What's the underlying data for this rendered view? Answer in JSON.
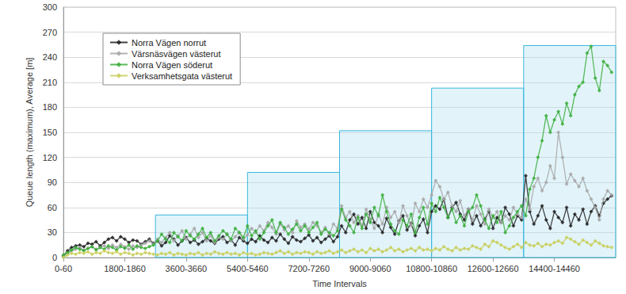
{
  "chart_data": {
    "type": "line",
    "x_label": "Time Intervals",
    "y_label": "Queue length (maximum), Average [m]",
    "xlim": [
      0,
      16200
    ],
    "xticks": [
      {
        "value": 0,
        "label": "0-60"
      },
      {
        "value": 1800,
        "label": "1800-1860"
      },
      {
        "value": 3600,
        "label": "3600-3660"
      },
      {
        "value": 5400,
        "label": "5400-5460"
      },
      {
        "value": 7200,
        "label": "7200-7260"
      },
      {
        "value": 9000,
        "label": "9000-9060"
      },
      {
        "value": 10800,
        "label": "10800-10860"
      },
      {
        "value": 12600,
        "label": "12600-12660"
      },
      {
        "value": 14400,
        "label": "14400-14460"
      }
    ],
    "ylim": [
      0,
      300
    ],
    "yticks": [
      0,
      30,
      60,
      90,
      120,
      150,
      180,
      210,
      240,
      270,
      300
    ],
    "grid": true,
    "legend": "upper left",
    "marker": "diamond",
    "line_style": "solid",
    "steps": [
      {
        "start": 2700,
        "end": 5400,
        "value": 51
      },
      {
        "start": 5400,
        "end": 8100,
        "value": 102
      },
      {
        "start": 8100,
        "end": 10800,
        "value": 152
      },
      {
        "start": 10800,
        "end": 13500,
        "value": 203
      },
      {
        "start": 13500,
        "end": 16200,
        "value": 254
      }
    ],
    "x": [
      0,
      120,
      240,
      360,
      480,
      600,
      720,
      840,
      960,
      1080,
      1200,
      1320,
      1440,
      1560,
      1680,
      1800,
      1920,
      2040,
      2160,
      2280,
      2400,
      2520,
      2640,
      2760,
      2880,
      3000,
      3120,
      3240,
      3360,
      3480,
      3600,
      3720,
      3840,
      3960,
      4080,
      4200,
      4320,
      4440,
      4560,
      4680,
      4800,
      4920,
      5040,
      5160,
      5280,
      5400,
      5520,
      5640,
      5760,
      5880,
      6000,
      6120,
      6240,
      6360,
      6480,
      6600,
      6720,
      6840,
      6960,
      7080,
      7200,
      7320,
      7440,
      7560,
      7680,
      7800,
      7920,
      8040,
      8160,
      8280,
      8400,
      8520,
      8640,
      8760,
      8880,
      9000,
      9120,
      9240,
      9360,
      9480,
      9600,
      9720,
      9840,
      9960,
      10080,
      10200,
      10320,
      10440,
      10560,
      10680,
      10800,
      10920,
      11040,
      11160,
      11280,
      11400,
      11520,
      11640,
      11760,
      11880,
      12000,
      12120,
      12240,
      12360,
      12480,
      12600,
      12720,
      12840,
      12960,
      13080,
      13200,
      13320,
      13440,
      13560,
      13680,
      13800,
      13920,
      14040,
      14160,
      14280,
      14400,
      14520,
      14640,
      14760,
      14880,
      15000,
      15120,
      15240,
      15360,
      15480,
      15600,
      15720,
      15840,
      15960,
      16080
    ],
    "series": [
      {
        "name": "Norra Vägen norrut",
        "color": "#222222",
        "values": [
          2,
          8,
          12,
          14,
          15,
          13,
          17,
          16,
          19,
          14,
          18,
          22,
          24,
          20,
          25,
          22,
          18,
          21,
          20,
          16,
          19,
          22,
          17,
          20,
          14,
          18,
          26,
          22,
          15,
          20,
          24,
          18,
          21,
          16,
          19,
          23,
          20,
          17,
          22,
          25,
          18,
          21,
          15,
          24,
          20,
          17,
          22,
          19,
          26,
          21,
          18,
          24,
          20,
          28,
          22,
          17,
          25,
          21,
          19,
          23,
          27,
          20,
          24,
          18,
          22,
          26,
          19,
          25,
          38,
          30,
          45,
          52,
          40,
          48,
          35,
          55,
          42,
          38,
          30,
          47,
          36,
          28,
          44,
          50,
          33,
          41,
          26,
          38,
          46,
          30,
          55,
          62,
          58,
          70,
          48,
          60,
          66,
          52,
          45,
          58,
          40,
          50,
          38,
          46,
          55,
          35,
          48,
          42,
          60,
          52,
          38,
          50,
          45,
          98,
          55,
          40,
          50,
          62,
          45,
          35,
          55,
          48,
          42,
          60,
          38,
          52,
          45,
          58,
          40,
          55,
          62,
          50,
          65,
          70,
          74
        ]
      },
      {
        "name": "Värsnäsvägen västerut",
        "color": "#a6a6a6",
        "values": [
          1,
          5,
          8,
          10,
          12,
          9,
          11,
          13,
          10,
          12,
          14,
          11,
          15,
          12,
          16,
          13,
          10,
          14,
          12,
          15,
          17,
          20,
          16,
          22,
          18,
          24,
          30,
          20,
          26,
          32,
          22,
          28,
          35,
          24,
          30,
          20,
          26,
          18,
          24,
          22,
          28,
          20,
          25,
          30,
          22,
          27,
          35,
          30,
          38,
          32,
          42,
          36,
          28,
          40,
          33,
          38,
          30,
          44,
          36,
          40,
          34,
          42,
          38,
          30,
          36,
          28,
          40,
          35,
          62,
          48,
          55,
          42,
          50,
          38,
          58,
          46,
          35,
          52,
          40,
          60,
          48,
          55,
          42,
          62,
          50,
          38,
          65,
          55,
          70,
          60,
          75,
          92,
          85,
          70,
          78,
          62,
          55,
          68,
          50,
          58,
          45,
          62,
          52,
          40,
          58,
          48,
          55,
          42,
          50,
          45,
          60,
          52,
          48,
          70,
          58,
          85,
          95,
          80,
          90,
          110,
          95,
          150,
          120,
          88,
          100,
          92,
          85,
          95,
          80,
          70,
          60,
          45,
          70,
          80,
          75
        ]
      },
      {
        "name": "Norra Vägen söderut",
        "color": "#3cae3c",
        "values": [
          3,
          6,
          9,
          12,
          10,
          8,
          11,
          13,
          9,
          12,
          10,
          14,
          12,
          9,
          13,
          11,
          15,
          10,
          14,
          12,
          11,
          13,
          15,
          20,
          28,
          22,
          18,
          30,
          25,
          20,
          32,
          26,
          22,
          28,
          35,
          24,
          30,
          20,
          26,
          32,
          28,
          22,
          35,
          30,
          24,
          38,
          26,
          32,
          22,
          30,
          38,
          45,
          30,
          42,
          36,
          28,
          34,
          40,
          32,
          38,
          30,
          36,
          42,
          28,
          34,
          30,
          26,
          32,
          58,
          45,
          38,
          30,
          48,
          35,
          52,
          42,
          60,
          50,
          75,
          55,
          40,
          32,
          28,
          45,
          38,
          52,
          30,
          48,
          60,
          40,
          65,
          55,
          72,
          60,
          48,
          58,
          42,
          50,
          38,
          55,
          60,
          75,
          62,
          45,
          35,
          50,
          42,
          55,
          30,
          38,
          48,
          55,
          62,
          50,
          82,
          95,
          120,
          140,
          170,
          150,
          165,
          175,
          160,
          185,
          170,
          195,
          205,
          210,
          245,
          253,
          215,
          200,
          235,
          230,
          222
        ]
      },
      {
        "name": "Verksamhetsgata västerut",
        "color": "#c9cf5c",
        "values": [
          0,
          3,
          5,
          4,
          6,
          5,
          7,
          4,
          6,
          5,
          8,
          6,
          5,
          7,
          4,
          6,
          5,
          3,
          5,
          4,
          6,
          5,
          4,
          3,
          5,
          4,
          6,
          3,
          5,
          4,
          3,
          5,
          4,
          6,
          3,
          5,
          4,
          7,
          5,
          4,
          6,
          4,
          5,
          3,
          6,
          4,
          5,
          3,
          4,
          6,
          5,
          4,
          6,
          8,
          5,
          7,
          4,
          6,
          5,
          7,
          6,
          4,
          7,
          5,
          6,
          8,
          5,
          7,
          9,
          6,
          8,
          10,
          7,
          9,
          6,
          11,
          8,
          10,
          7,
          9,
          12,
          8,
          10,
          7,
          9,
          11,
          8,
          12,
          9,
          10,
          8,
          11,
          9,
          13,
          10,
          8,
          12,
          9,
          11,
          10,
          14,
          12,
          10,
          16,
          13,
          20,
          18,
          15,
          12,
          10,
          13,
          16,
          12,
          18,
          15,
          14,
          17,
          13,
          16,
          15,
          18,
          20,
          17,
          24,
          22,
          19,
          16,
          21,
          18,
          15,
          20,
          17,
          14,
          13,
          12
        ]
      }
    ]
  }
}
